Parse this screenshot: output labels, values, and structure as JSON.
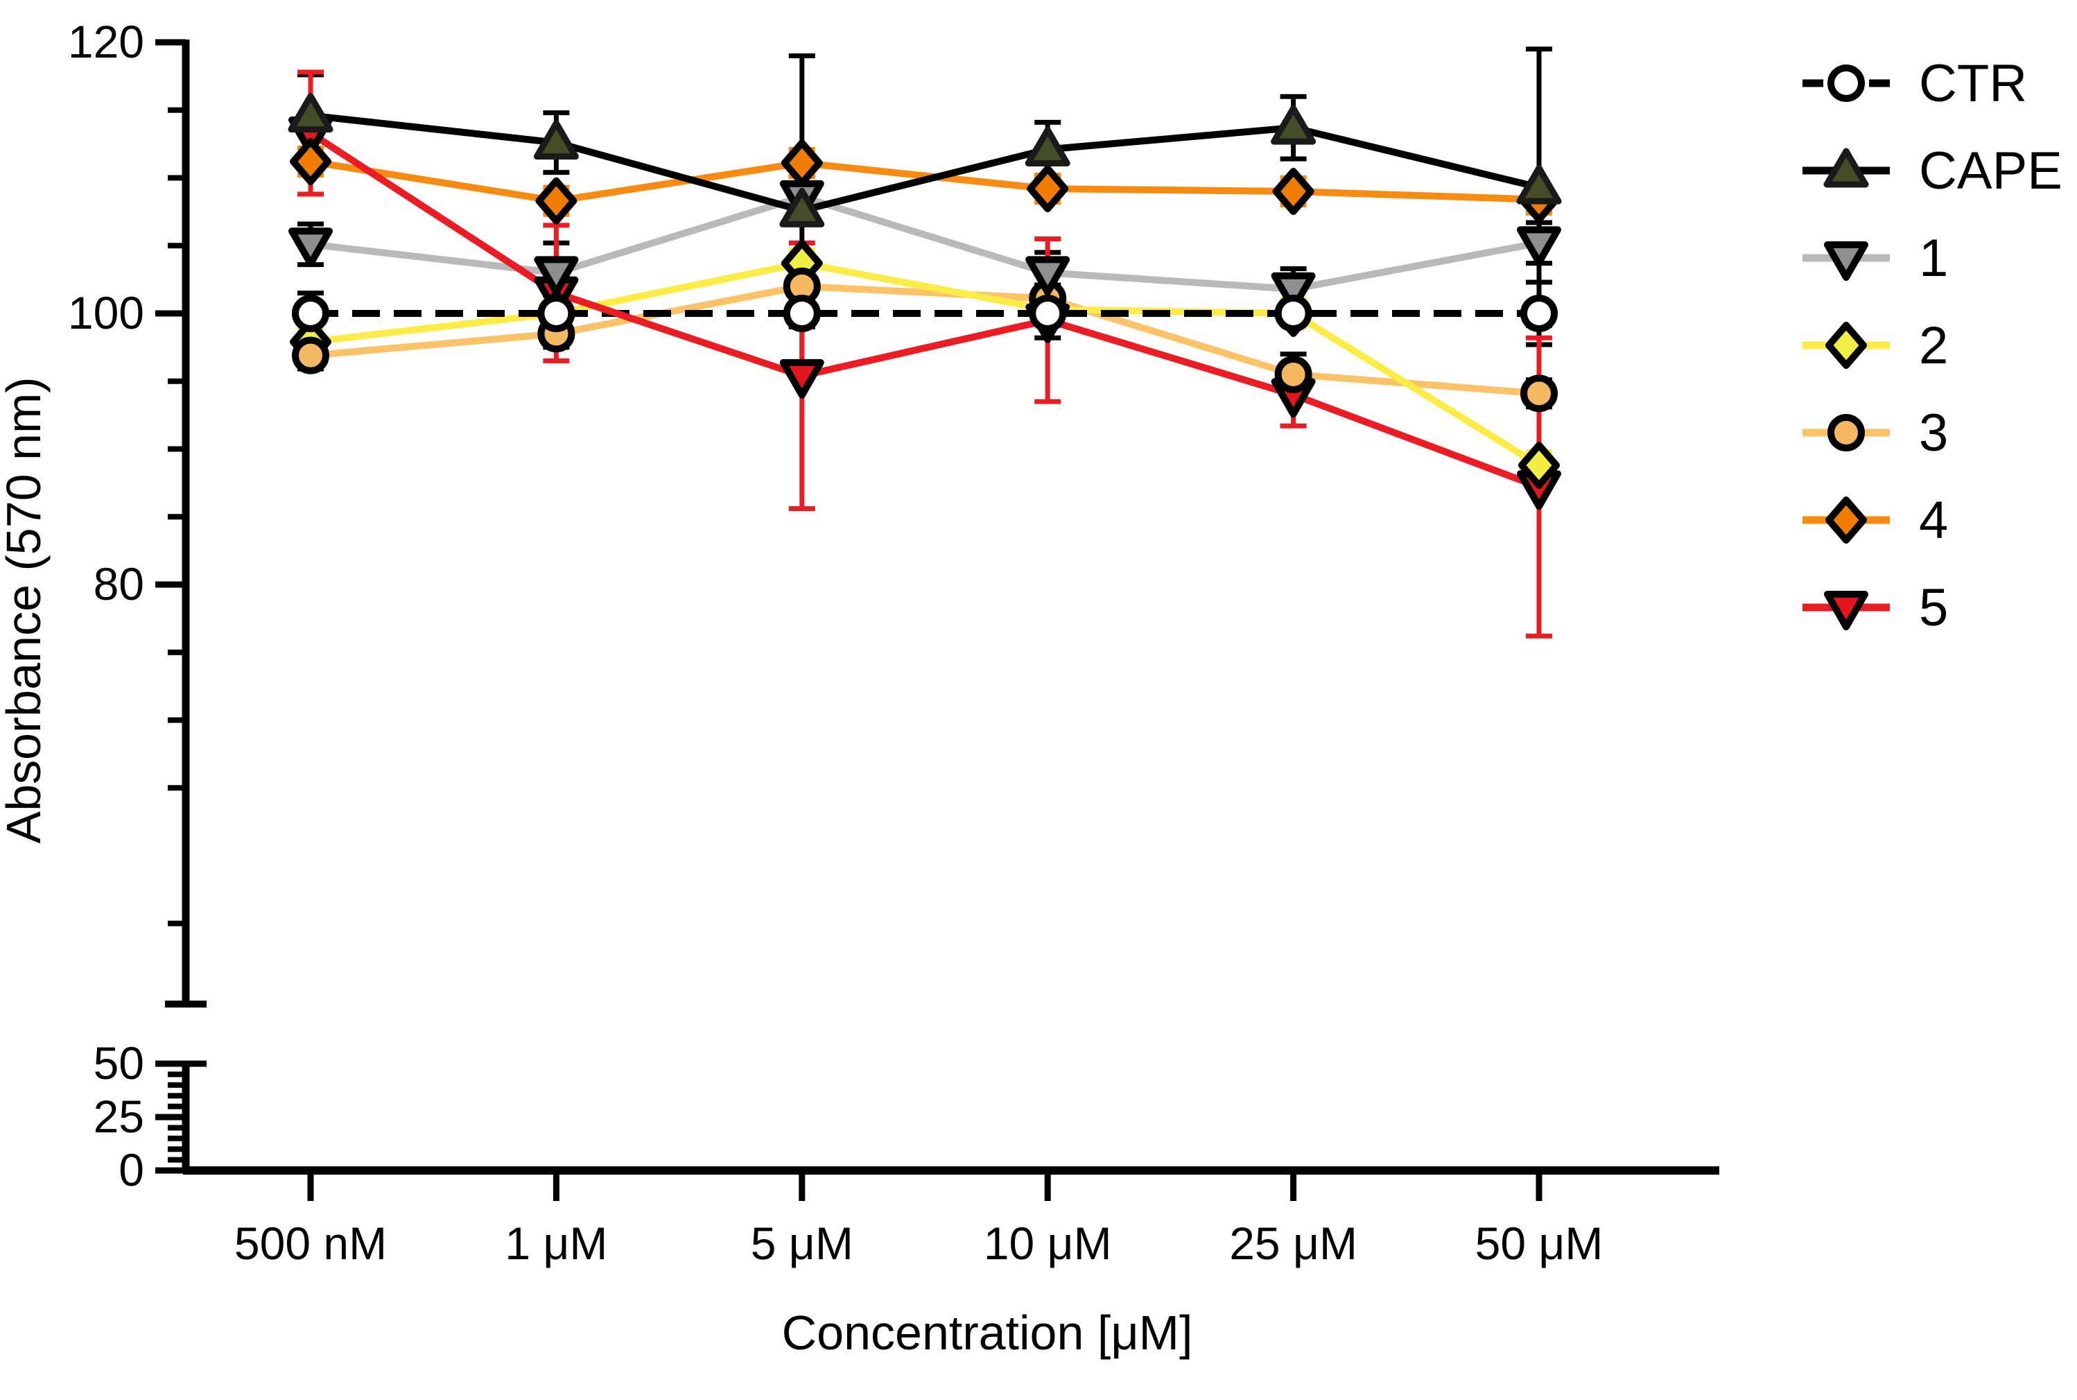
{
  "figure": {
    "background": "#ffffff",
    "y_axis": {
      "label": "Absorbance (570 nm)",
      "upper_major_ticks": [
        120,
        100,
        80
      ],
      "upper_minor_step": 5,
      "upper_range": [
        50,
        120
      ],
      "lower_major_ticks": [
        50,
        25,
        0
      ],
      "lower_minor_step": 5,
      "lower_range": [
        0,
        50
      ],
      "axis_break": true
    },
    "x_axis": {
      "label": "Concentration [μM]",
      "tick_labels": [
        "500 nM",
        "1 μM",
        "5 μM",
        "10 μM",
        "25 μM",
        "50 μM"
      ]
    },
    "legend": {
      "position": "right",
      "entries": [
        "CTR",
        "CAPE",
        "1",
        "2",
        "3",
        "4",
        "5"
      ]
    }
  },
  "chart_data": {
    "type": "line",
    "title": "",
    "xlabel": "Concentration [μM]",
    "ylabel": "Absorbance (570 nm)",
    "categories": [
      "500 nM",
      "1 μM",
      "5 μM",
      "10 μM",
      "25 μM",
      "50 μM"
    ],
    "ylim_upper_segment": [
      50,
      120
    ],
    "ylim_lower_segment": [
      0,
      50
    ],
    "grid": false,
    "legend_position": "right",
    "series": [
      {
        "name": "CTR",
        "values": [
          100,
          100,
          100,
          100,
          100,
          100
        ],
        "errors": [
          1.5,
          1.2,
          1.0,
          1.8,
          1.0,
          2.3
        ],
        "line_color": "#000000",
        "line_style": "dashed",
        "marker": "circle",
        "marker_fill": "#ffffff",
        "err_color": "#000000"
      },
      {
        "name": "CAPE",
        "values": [
          114.6,
          112.6,
          107.6,
          112.1,
          113.7,
          109.3
        ],
        "errors": [
          3.0,
          2.2,
          11.4,
          2.0,
          2.3,
          10.2
        ],
        "line_color": "#000000",
        "line_style": "solid",
        "marker": "triangle-up",
        "marker_fill": "#434d28",
        "err_color": "#000000"
      },
      {
        "name": "1",
        "values": [
          105.1,
          103.0,
          108.6,
          103.0,
          101.8,
          105.2
        ],
        "errors": [
          1.5,
          2.2,
          1.5,
          1.5,
          1.5,
          1.5
        ],
        "line_color": "#b9b9b9",
        "line_style": "solid",
        "marker": "triangle-down",
        "marker_fill": "#8f8f8f",
        "err_color": "#000000"
      },
      {
        "name": "2",
        "values": [
          97.9,
          100.0,
          103.7,
          100.3,
          100.0,
          88.8
        ],
        "errors": [
          1.0,
          1.0,
          1.0,
          1.0,
          1.0,
          1.0
        ],
        "line_color": "#fdec45",
        "line_style": "solid",
        "marker": "diamond",
        "marker_fill": "#f1ef45",
        "err_color": "#fdec45"
      },
      {
        "name": "3",
        "values": [
          96.9,
          98.5,
          102.0,
          101.1,
          95.5,
          94.1
        ],
        "errors": [
          1.0,
          1.0,
          1.0,
          1.0,
          1.5,
          1.0
        ],
        "line_color": "#fbc268",
        "line_style": "solid",
        "marker": "circle",
        "marker_fill": "#f3b860",
        "err_color": "#000000"
      },
      {
        "name": "4",
        "values": [
          111.2,
          108.3,
          111.1,
          109.2,
          109.0,
          108.4
        ],
        "errors": [
          1.0,
          1.0,
          1.0,
          1.0,
          1.0,
          1.0
        ],
        "line_color": "#f78b12",
        "line_style": "solid",
        "marker": "diamond",
        "marker_fill": "#f17d00",
        "err_color": "#f78b12"
      },
      {
        "name": "5",
        "values": [
          113.3,
          101.5,
          95.4,
          99.5,
          94.0,
          87.2
        ],
        "errors": [
          4.5,
          5.0,
          9.8,
          6.0,
          2.3,
          11.0
        ],
        "line_color": "#ec1c24",
        "line_style": "solid",
        "marker": "triangle-down",
        "marker_fill": "#e3151d",
        "err_color": "#ec1c24"
      }
    ],
    "line_draw_order": [
      "1",
      "3",
      "2",
      "4",
      "CAPE",
      "CTR",
      "5"
    ],
    "marker_draw_order": [
      "5",
      "4",
      "2",
      "3",
      "1",
      "CAPE",
      "CTR"
    ]
  }
}
